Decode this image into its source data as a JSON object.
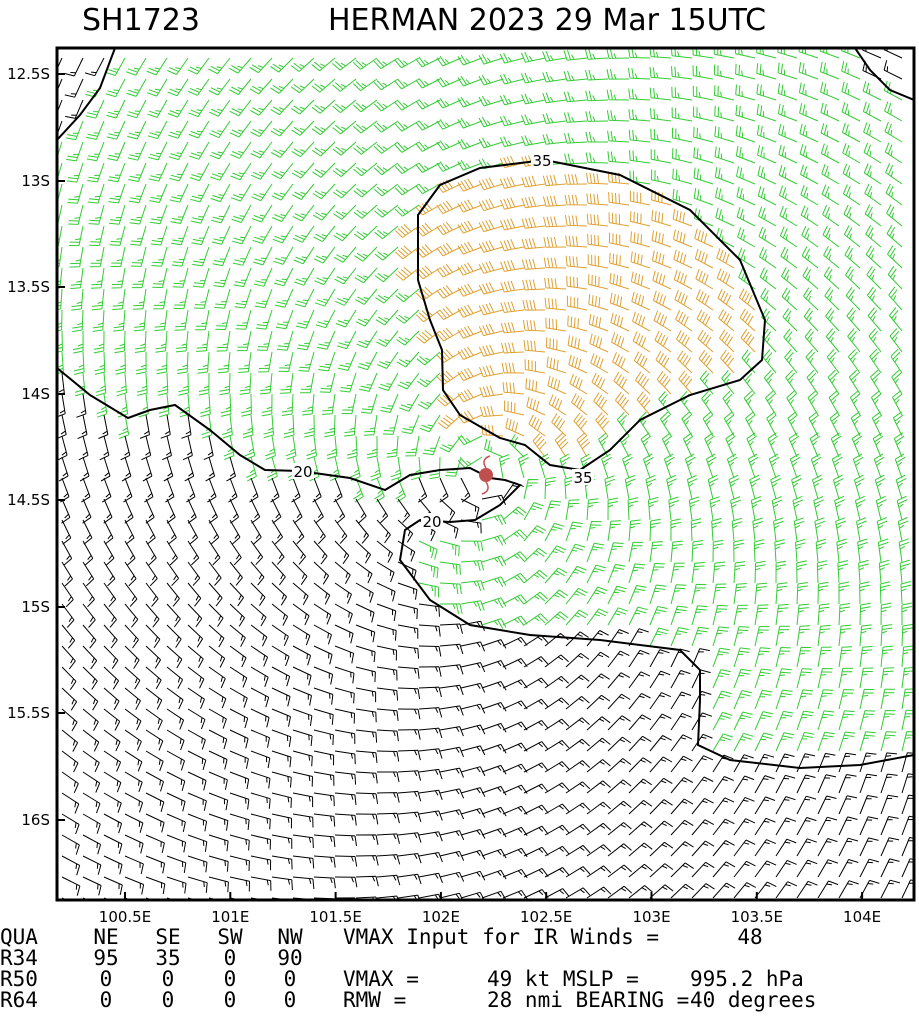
{
  "header": {
    "id": "SH1723",
    "title": "HERMAN 2023 29 Mar 15UTC"
  },
  "map": {
    "lat_labels": [
      "12.5S",
      "13S",
      "13.5S",
      "14S",
      "14.5S",
      "15S",
      "15.5S",
      "16S"
    ],
    "lon_labels": [
      "100.5E",
      "101E",
      "101.5E",
      "102E",
      "102.5E",
      "103E",
      "103.5E",
      "104E"
    ],
    "contour_labels": [
      "35",
      "35",
      "20",
      "20"
    ]
  },
  "footer": {
    "rows": [
      [
        "QUA",
        "NE",
        "SE",
        "SW",
        "NW",
        "VMAX Input for IR Winds =",
        "48"
      ],
      [
        "R34",
        "95",
        "35",
        "0",
        "90"
      ],
      [
        "R50",
        "0",
        "0",
        "0",
        "0",
        "VMAX =",
        "49 kt MSLP =",
        "995.2 hPa"
      ],
      [
        "R64",
        "0",
        "0",
        "0",
        "0",
        "RMW  =",
        "28 nmi BEARING =",
        "40 degrees"
      ]
    ]
  }
}
